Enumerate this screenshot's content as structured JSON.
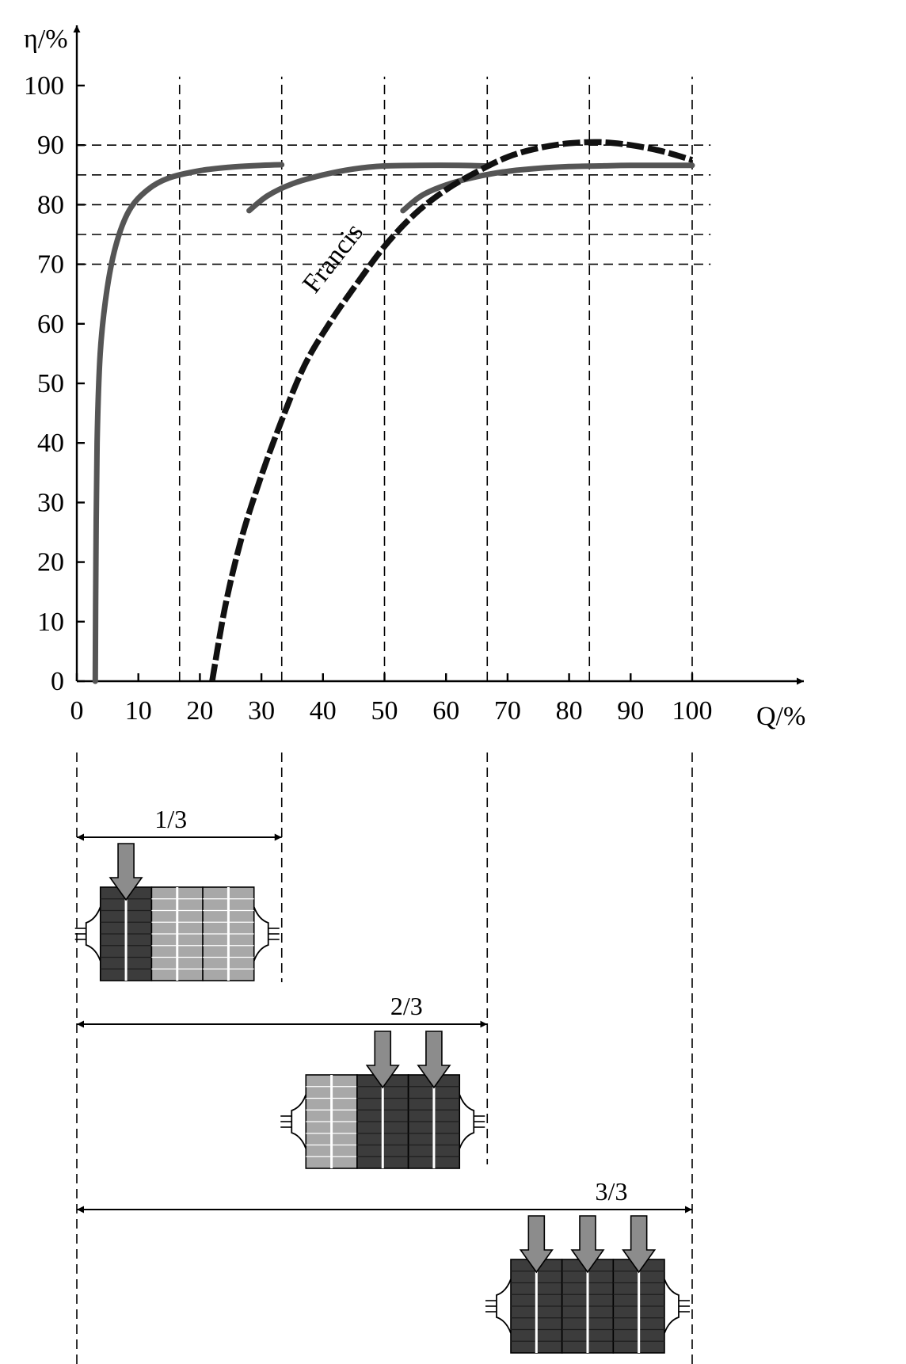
{
  "chart_data": {
    "type": "line",
    "xlabel": "Q/%",
    "ylabel": "η/%",
    "xlim": [
      0,
      100
    ],
    "ylim": [
      0,
      100
    ],
    "x_ticks": [
      0,
      10,
      20,
      30,
      40,
      50,
      60,
      70,
      80,
      90,
      100
    ],
    "y_ticks": [
      0,
      10,
      20,
      30,
      40,
      50,
      60,
      70,
      80,
      90,
      100
    ],
    "x_tick_labels": [
      "0",
      "10",
      "20",
      "30",
      "40",
      "50",
      "60",
      "70",
      "80",
      "90",
      "100"
    ],
    "y_tick_labels": [
      "0",
      "10",
      "20",
      "30",
      "40",
      "50",
      "60",
      "70",
      "80",
      "90",
      "100"
    ],
    "vertical_gridlines_at": [
      16.7,
      33.3,
      50,
      66.7,
      83.3,
      100
    ],
    "horizontal_gridlines_at": [
      70,
      75,
      80,
      85,
      90
    ],
    "series": [
      {
        "style": "gray-solid",
        "points": [
          [
            3,
            0
          ],
          [
            3.1,
            20
          ],
          [
            3.3,
            40
          ],
          [
            3.8,
            55
          ],
          [
            4.8,
            65
          ],
          [
            6.3,
            73
          ],
          [
            8.5,
            79
          ],
          [
            11.5,
            82.5
          ],
          [
            15,
            84.5
          ],
          [
            20,
            85.7
          ],
          [
            25,
            86.3
          ],
          [
            30,
            86.6
          ],
          [
            33.3,
            86.7
          ]
        ]
      },
      {
        "style": "gray-solid",
        "points": [
          [
            28,
            79
          ],
          [
            31,
            81.5
          ],
          [
            35,
            83.5
          ],
          [
            40,
            85
          ],
          [
            45,
            86
          ],
          [
            50,
            86.5
          ],
          [
            56,
            86.6
          ],
          [
            62,
            86.6
          ],
          [
            66.7,
            86.5
          ]
        ]
      },
      {
        "style": "gray-solid",
        "points": [
          [
            53,
            79
          ],
          [
            56,
            81.5
          ],
          [
            60,
            83.3
          ],
          [
            65,
            84.7
          ],
          [
            70,
            85.6
          ],
          [
            75,
            86.1
          ],
          [
            80,
            86.4
          ],
          [
            85,
            86.5
          ],
          [
            90,
            86.6
          ],
          [
            100,
            86.6
          ]
        ]
      },
      {
        "name": "Francis",
        "style": "black-dashed",
        "points": [
          [
            22,
            0
          ],
          [
            24,
            12
          ],
          [
            26.5,
            23
          ],
          [
            29.5,
            33
          ],
          [
            33,
            43
          ],
          [
            37,
            53
          ],
          [
            41,
            60
          ],
          [
            45,
            66
          ],
          [
            50,
            73
          ],
          [
            55,
            78.5
          ],
          [
            60,
            82.5
          ],
          [
            65,
            85.5
          ],
          [
            70,
            88
          ],
          [
            75,
            89.5
          ],
          [
            80,
            90.3
          ],
          [
            85,
            90.5
          ],
          [
            90,
            90
          ],
          [
            95,
            89
          ],
          [
            100,
            87.5
          ]
        ]
      }
    ],
    "annotations": [
      "Francis"
    ]
  },
  "schematic": {
    "configs": [
      {
        "label": "1/3",
        "span": [
          0,
          33.3
        ],
        "active_cells": 1,
        "total_cells": 3
      },
      {
        "label": "2/3",
        "span": [
          0,
          66.7
        ],
        "active_cells": 2,
        "total_cells": 3
      },
      {
        "label": "3/3",
        "span": [
          0,
          100
        ],
        "active_cells": 3,
        "total_cells": 3
      }
    ],
    "colors": {
      "active_cell": "#3c3c3c",
      "inactive_cell": "#a8a8a8",
      "arrow": "#8c8c8c",
      "gray_curve": "#555555",
      "francis_curve": "#111111"
    }
  }
}
